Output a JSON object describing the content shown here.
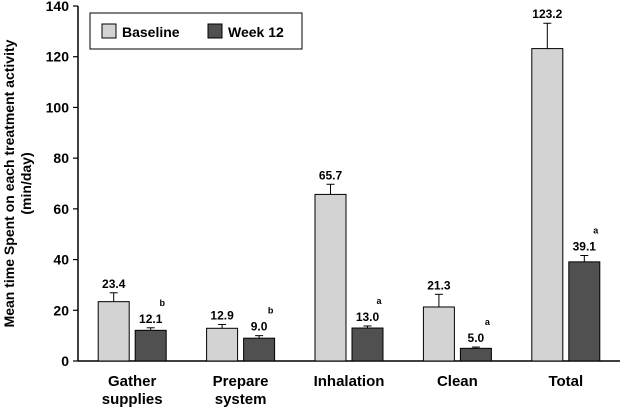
{
  "chart_data": {
    "type": "bar",
    "categories": [
      [
        "Gather",
        "supplies"
      ],
      [
        "Prepare",
        "system"
      ],
      [
        "Inhalation"
      ],
      [
        "Clean"
      ],
      [
        "Total"
      ]
    ],
    "series": [
      {
        "name": "Baseline",
        "color": "#d3d3d3",
        "values": [
          23.4,
          12.9,
          65.7,
          21.3,
          123.2
        ],
        "value_labels": [
          "23.4",
          "12.9",
          "65.7",
          "21.3",
          "123.2"
        ],
        "errors": [
          3.5,
          1.5,
          4.0,
          5.0,
          10.0
        ],
        "significance": [
          "",
          "",
          "",
          "",
          ""
        ]
      },
      {
        "name": "Week 12",
        "color": "#505050",
        "values": [
          12.1,
          9.0,
          13.0,
          5.0,
          39.1
        ],
        "value_labels": [
          "12.1",
          "9.0",
          "13.0",
          "5.0",
          "39.1"
        ],
        "errors": [
          1.0,
          1.0,
          0.8,
          0.5,
          2.5
        ],
        "significance": [
          "b",
          "b",
          "a",
          "a",
          "a"
        ]
      }
    ],
    "ylabel_lines": [
      "Mean time Spent on each treatment activity",
      "(min/day)"
    ],
    "ylim": [
      0,
      140
    ],
    "yticks": [
      0,
      20,
      40,
      60,
      80,
      100,
      120,
      140
    ],
    "grid": false,
    "legend_position": "top-left"
  }
}
